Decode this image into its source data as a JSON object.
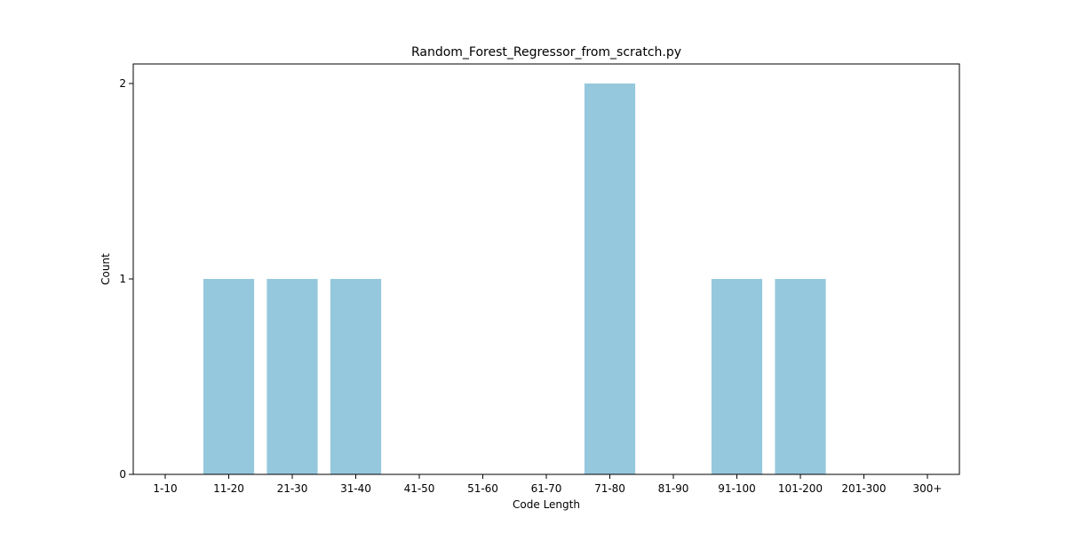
{
  "chart_data": {
    "type": "bar",
    "title": "Random_Forest_Regressor_from_scratch.py",
    "xlabel": "Code Length",
    "ylabel": "Count",
    "categories": [
      "1-10",
      "11-20",
      "21-30",
      "31-40",
      "41-50",
      "51-60",
      "61-70",
      "71-80",
      "81-90",
      "91-100",
      "101-200",
      "201-300",
      "300+"
    ],
    "values": [
      0,
      1,
      1,
      1,
      0,
      0,
      0,
      2,
      0,
      1,
      1,
      0,
      0
    ],
    "ylim": [
      0,
      2.1
    ],
    "yticks": [
      0,
      1,
      2
    ],
    "grid": false,
    "legend": "none",
    "bar_color": "#96c8dd"
  }
}
